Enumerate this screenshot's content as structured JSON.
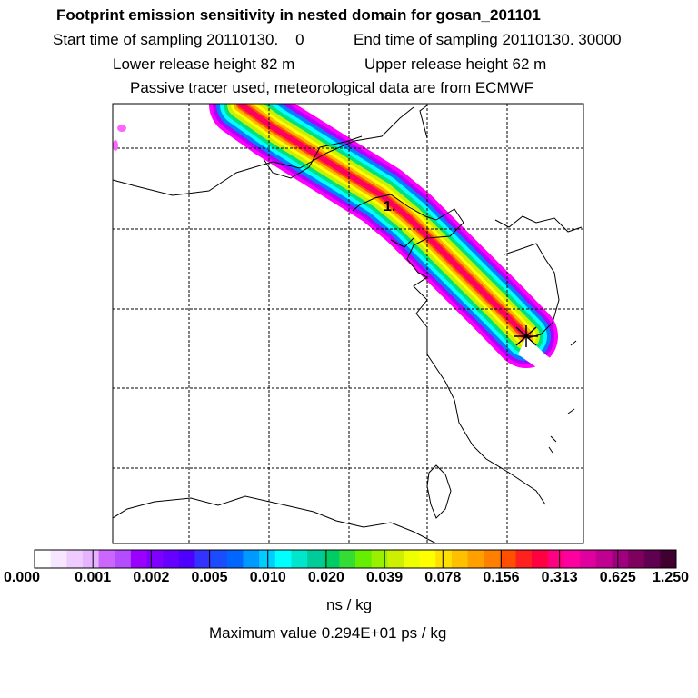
{
  "header": {
    "title": "Footprint emission sensitivity in nested domain for gosan_201101",
    "start_label": "Start time of sampling 20110130.",
    "start_hour": "0",
    "end_label": "End time of sampling 20110130. 30000",
    "lower_release": "Lower release height   82 m",
    "upper_release": "Upper release height   62 m",
    "tracer_note": "Passive tracer used, meteorological data are from ECMWF"
  },
  "map": {
    "marker_label": "1.",
    "plume_colors": [
      "#ff00ff",
      "#b000ff",
      "#0080ff",
      "#00ffff",
      "#00e080",
      "#c8f000",
      "#ffff00",
      "#ffb000",
      "#ff5000",
      "#ff0060"
    ]
  },
  "colorbar": {
    "colors": [
      "#ffffff",
      "#f7e6ff",
      "#efccff",
      "#e6b3ff",
      "#cc66ff",
      "#b34dff",
      "#9900ff",
      "#7f00ff",
      "#6600ff",
      "#4d00ff",
      "#3333ff",
      "#1a4dff",
      "#0066ff",
      "#0099ff",
      "#00ccff",
      "#00ffff",
      "#00e6cc",
      "#00cc99",
      "#00cc66",
      "#33dd33",
      "#66ee00",
      "#99f000",
      "#ccf000",
      "#eeff00",
      "#ffff00",
      "#ffe000",
      "#ffc000",
      "#ffa000",
      "#ff8000",
      "#ff5000",
      "#ff2020",
      "#ff0040",
      "#ff0080",
      "#ff00a0",
      "#e000a0",
      "#c00090",
      "#a00080",
      "#800060",
      "#600050",
      "#400030"
    ],
    "ticks": [
      "0.000",
      "0.001",
      "0.002",
      "0.005",
      "0.010",
      "0.020",
      "0.039",
      "0.078",
      "0.156",
      "0.313",
      "0.625",
      "1.250"
    ],
    "unit": "ns / kg"
  },
  "footer": {
    "maximum_value": "Maximum value  0.294E+01 ps / kg"
  }
}
